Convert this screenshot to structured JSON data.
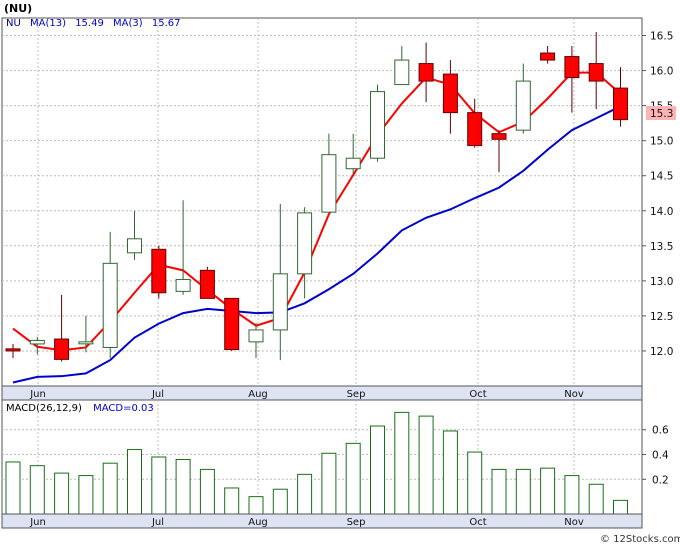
{
  "ticker": "(NU)",
  "credit": "© 12Stocks.com",
  "colors": {
    "up_fill": "#ffffff",
    "down_fill": "#ff0000",
    "candle_stroke": "#333333",
    "ma3": "#ff0000",
    "ma13": "#0000cc",
    "macd_bar": "#1a6e1a",
    "grid": "#bbbbbb",
    "last_price_box": "#ffb3b3"
  },
  "chart_data": [
    {
      "type": "candlestick",
      "legend": {
        "symbol": "NU",
        "ma13_label": "MA(13)",
        "ma13_value": "15.49",
        "ma3_label": "MA(3)",
        "ma3_value": "15.67"
      },
      "ylim": [
        11.5,
        16.75
      ],
      "yticks": [
        "12.0",
        "12.5",
        "13.0",
        "13.5",
        "14.0",
        "14.5",
        "15.0",
        "15.5",
        "16.0",
        "16.5"
      ],
      "xticks": [
        "Jun",
        "Jul",
        "Aug",
        "Sep",
        "Oct",
        "Nov"
      ],
      "last_price": "15.3",
      "candles": [
        {
          "o": 12.03,
          "h": 12.1,
          "l": 11.9,
          "c": 12.0
        },
        {
          "o": 12.1,
          "h": 12.2,
          "l": 11.95,
          "c": 12.15
        },
        {
          "o": 12.17,
          "h": 12.8,
          "l": 11.85,
          "c": 11.88
        },
        {
          "o": 12.13,
          "h": 12.5,
          "l": 11.98,
          "c": 12.13
        },
        {
          "o": 12.05,
          "h": 13.7,
          "l": 11.9,
          "c": 13.25
        },
        {
          "o": 13.4,
          "h": 14.0,
          "l": 13.3,
          "c": 13.6
        },
        {
          "o": 13.45,
          "h": 13.5,
          "l": 12.75,
          "c": 12.83
        },
        {
          "o": 12.85,
          "h": 14.15,
          "l": 12.8,
          "c": 13.02
        },
        {
          "o": 13.15,
          "h": 13.2,
          "l": 12.75,
          "c": 12.75
        },
        {
          "o": 12.75,
          "h": 12.75,
          "l": 12.0,
          "c": 12.02
        },
        {
          "o": 12.13,
          "h": 12.4,
          "l": 11.9,
          "c": 12.3
        },
        {
          "o": 12.3,
          "h": 14.1,
          "l": 11.87,
          "c": 13.1
        },
        {
          "o": 13.1,
          "h": 14.05,
          "l": 12.75,
          "c": 13.97
        },
        {
          "o": 13.98,
          "h": 15.1,
          "l": 13.98,
          "c": 14.8
        },
        {
          "o": 14.6,
          "h": 15.1,
          "l": 14.52,
          "c": 14.75
        },
        {
          "o": 14.75,
          "h": 15.8,
          "l": 14.7,
          "c": 15.7
        },
        {
          "o": 15.8,
          "h": 16.35,
          "l": 15.8,
          "c": 16.15
        },
        {
          "o": 16.1,
          "h": 16.4,
          "l": 15.55,
          "c": 15.85
        },
        {
          "o": 15.95,
          "h": 16.15,
          "l": 15.1,
          "c": 15.4
        },
        {
          "o": 15.4,
          "h": 15.6,
          "l": 14.9,
          "c": 14.93
        },
        {
          "o": 15.1,
          "h": 15.15,
          "l": 14.55,
          "c": 15.02
        },
        {
          "o": 15.15,
          "h": 16.1,
          "l": 15.1,
          "c": 15.85
        },
        {
          "o": 16.25,
          "h": 16.35,
          "l": 16.1,
          "c": 16.15
        },
        {
          "o": 16.2,
          "h": 16.35,
          "l": 15.4,
          "c": 15.9
        },
        {
          "o": 16.1,
          "h": 16.55,
          "l": 15.45,
          "c": 15.85
        },
        {
          "o": 15.75,
          "h": 16.05,
          "l": 15.2,
          "c": 15.3
        }
      ],
      "ma3": [
        12.32,
        12.06,
        12.01,
        12.05,
        12.42,
        12.83,
        13.23,
        13.15,
        12.87,
        12.6,
        12.36,
        12.47,
        13.12,
        13.95,
        14.51,
        15.08,
        15.53,
        15.9,
        15.8,
        15.39,
        15.12,
        15.27,
        15.6,
        15.97,
        15.97,
        15.67
      ],
      "ma13": [
        11.55,
        11.63,
        11.64,
        11.68,
        11.87,
        12.19,
        12.39,
        12.54,
        12.6,
        12.57,
        12.54,
        12.55,
        12.68,
        12.88,
        13.1,
        13.39,
        13.72,
        13.9,
        14.02,
        14.18,
        14.33,
        14.57,
        14.87,
        15.15,
        15.32,
        15.49
      ]
    },
    {
      "type": "bar",
      "legend": {
        "label": "MACD(26,12,9)",
        "value_label": "MACD=0.03"
      },
      "ylim": [
        -0.08,
        0.84
      ],
      "yticks": [
        "0.2",
        "0.4",
        "0.6"
      ],
      "xticks": [
        "Jun",
        "Jul",
        "Aug",
        "Sep",
        "Oct",
        "Nov"
      ],
      "values": [
        0.34,
        0.31,
        0.25,
        0.23,
        0.33,
        0.44,
        0.38,
        0.36,
        0.28,
        0.13,
        0.06,
        0.12,
        0.24,
        0.41,
        0.49,
        0.63,
        0.74,
        0.71,
        0.59,
        0.42,
        0.28,
        0.28,
        0.29,
        0.23,
        0.16,
        0.03
      ]
    }
  ]
}
